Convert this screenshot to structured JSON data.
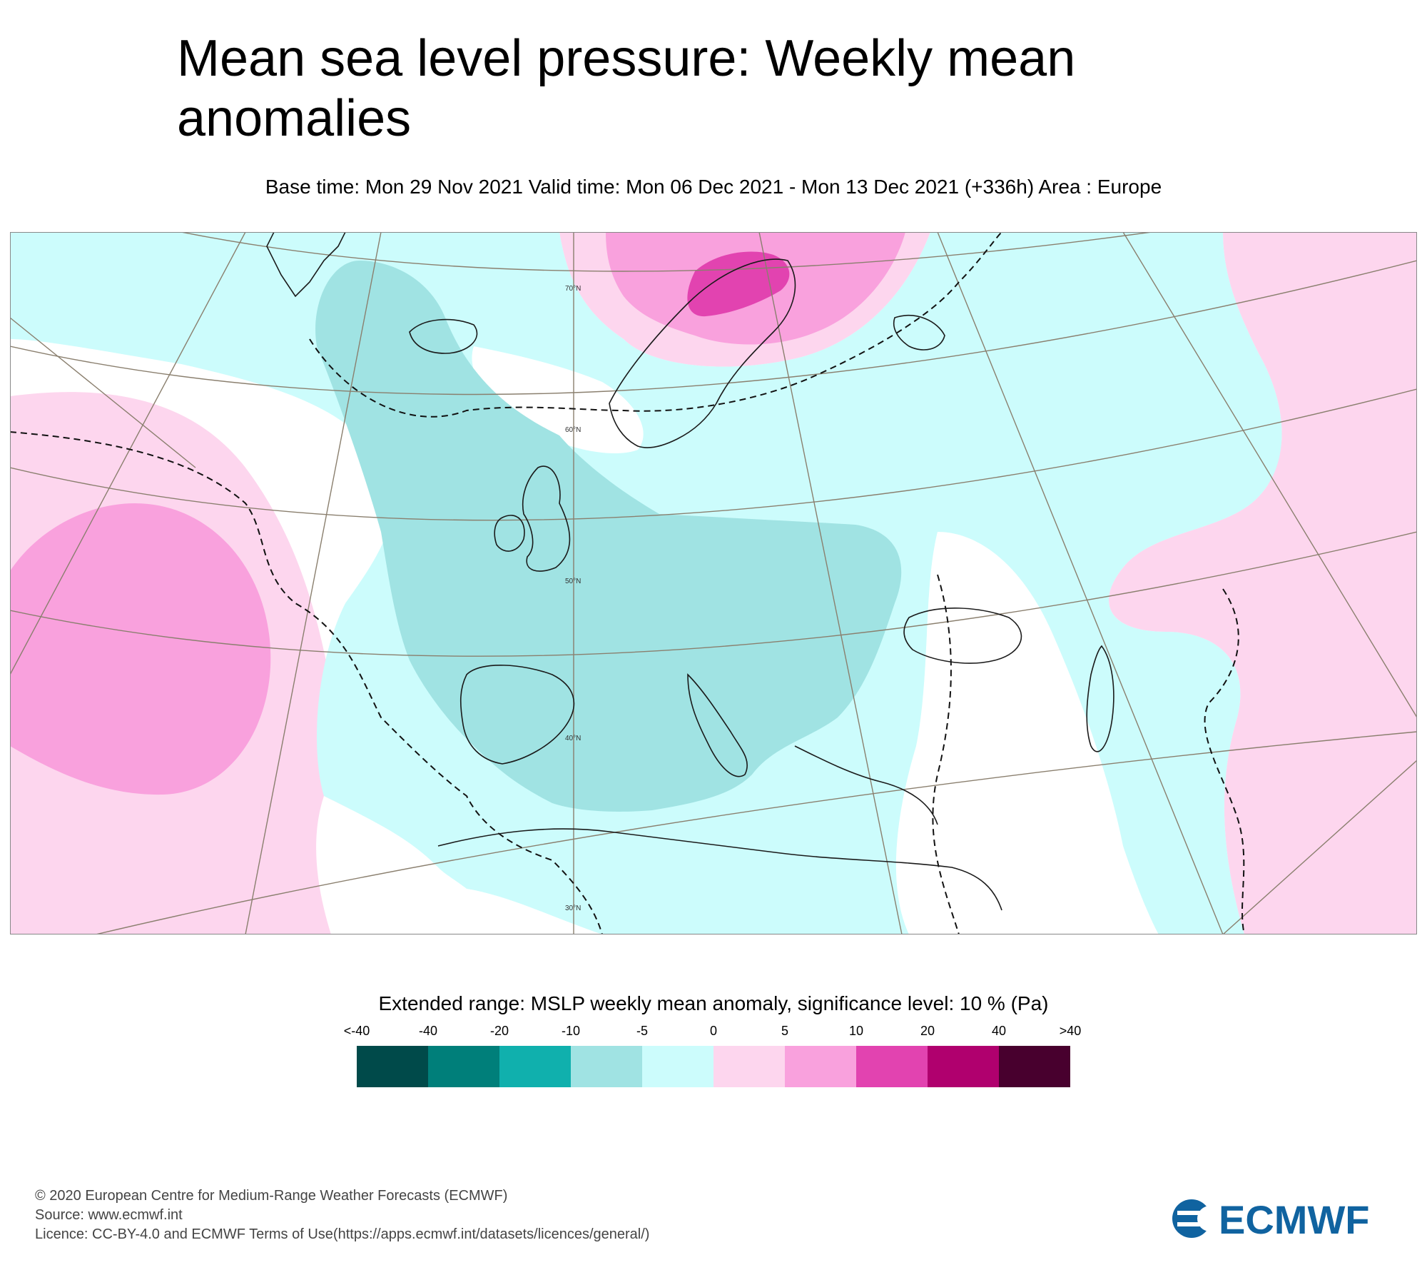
{
  "header": {
    "title": "Mean sea level pressure: Weekly mean anomalies",
    "subtitle": "Base time: Mon 29 Nov 2021 Valid time: Mon 06 Dec 2021 - Mon 13 Dec 2021 (+336h) Area : Europe"
  },
  "map": {
    "latitude_labels": [
      "70°N",
      "60°N",
      "50°N",
      "40°N",
      "30°N"
    ],
    "colors": {
      "neg40": "#004a4a",
      "neg20": "#007f7a",
      "neg10": "#10b0ad",
      "neg5": "#a0e3e3",
      "neg0": "#ccfcfc",
      "pos0": "#fdd6ee",
      "pos5": "#f9a1dd",
      "pos10": "#e243b0",
      "pos20": "#b0006e",
      "pos40": "#48002e",
      "coast": "#1a1a1a",
      "grid": "#8a7f6e"
    }
  },
  "legend": {
    "title": "Extended range: MSLP weekly mean anomaly, significance level: 10 % (Pa)",
    "ticks": [
      "<-40",
      "-40",
      "-20",
      "-10",
      "-5",
      "0",
      "5",
      "10",
      "20",
      "40",
      ">40"
    ],
    "colors": [
      "#004a4a",
      "#007f7a",
      "#10b0ad",
      "#a0e3e3",
      "#ccfcfc",
      "#fdd6ee",
      "#f9a1dd",
      "#e243b0",
      "#b0006e",
      "#48002e"
    ]
  },
  "footer": {
    "line1": "© 2020 European Centre for Medium-Range Weather Forecasts (ECMWF)",
    "line2": "Source: www.ecmwf.int",
    "line3": "Licence: CC-BY-4.0 and ECMWF Terms of Use(https://apps.ecmwf.int/datasets/licences/general/)"
  },
  "logo": {
    "text": "ECMWF",
    "color": "#1063a0"
  }
}
